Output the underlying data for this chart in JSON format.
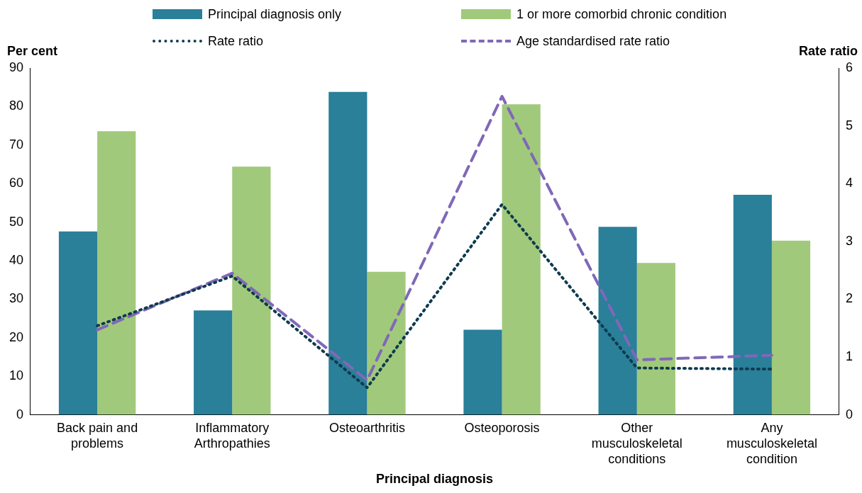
{
  "chart_data": {
    "type": "bar",
    "xlabel": "Principal diagnosis",
    "ylabel": "Per cent",
    "y2label": "Rate ratio",
    "categories": [
      "Back pain and problems",
      "Inflammatory Arthropathies",
      "Osteoarthritis",
      "Osteoporosis",
      "Other musculoskeletal conditions",
      "Any musculoskeletal condition"
    ],
    "series": [
      {
        "name": "Principal diagnosis only",
        "color": "#2a7f99",
        "values": [
          47.6,
          27.1,
          83.8,
          22.1,
          48.8,
          57.1
        ]
      },
      {
        "name": "1 or more comorbid chronic condition",
        "color": "#a1c97b",
        "values": [
          73.6,
          64.4,
          37.1,
          80.6,
          39.4,
          45.2
        ]
      },
      {
        "name": "Rate ratio",
        "type": "line",
        "axis": "y2",
        "line_style": "dotted",
        "color": "#0e3b4f",
        "values": [
          1.54,
          2.4,
          0.47,
          3.64,
          0.81,
          0.79
        ]
      },
      {
        "name": "Age standardised rate ratio",
        "type": "line",
        "axis": "y2",
        "line_style": "dashed",
        "color": "#8068b8",
        "values": [
          1.47,
          2.45,
          0.6,
          5.51,
          0.95,
          1.03
        ]
      }
    ],
    "ylim": [
      0,
      90
    ],
    "yticks": [
      0,
      10,
      20,
      30,
      40,
      50,
      60,
      70,
      80,
      90
    ],
    "y2lim": [
      0,
      6
    ],
    "y2ticks": [
      0,
      1,
      2,
      3,
      4,
      5,
      6
    ],
    "grid": false,
    "legend": "top",
    "marker": "none"
  }
}
